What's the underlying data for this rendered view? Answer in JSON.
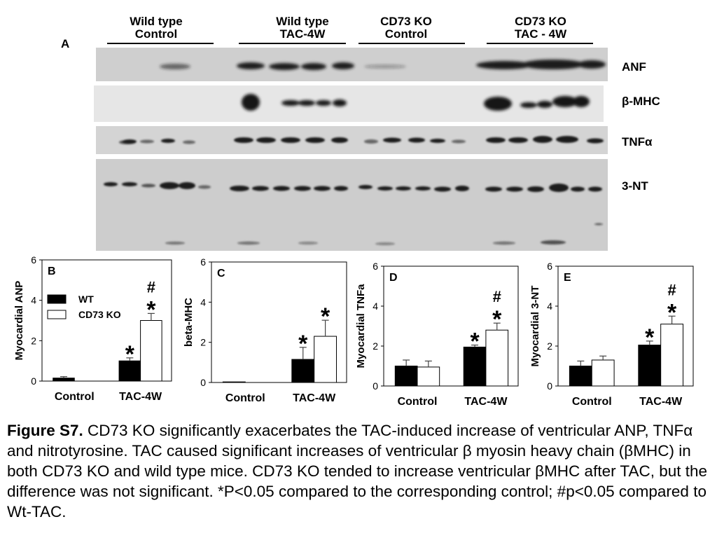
{
  "figure": {
    "panel_a_letter": "A",
    "groups": [
      {
        "line1": "Wild type",
        "line2": "Control"
      },
      {
        "line1": "Wild type",
        "line2": "TAC-4W"
      },
      {
        "line1": "CD73 KO",
        "line2": "Control"
      },
      {
        "line1": "CD73 KO",
        "line2": "TAC - 4W"
      }
    ],
    "blot_labels": [
      "ANF",
      "β-MHC",
      "TNFα",
      "3-NT"
    ],
    "caption": {
      "label": "Figure S7.",
      "text": " CD73 KO significantly exacerbates the TAC-induced increase of ventricular ANP, TNFα and nitrotyrosine. TAC caused significant increases of ventricular β myosin heavy chain (βMHC) in both CD73 KO and wild type mice. CD73 KO tended to increase ventricular βMHC after TAC, but the difference was not significant. *P<0.05 compared to the corresponding control; #p<0.05 compared to Wt-TAC."
    }
  },
  "chart_data": [
    {
      "type": "bar",
      "panel": "B",
      "ylabel": "Myocardial ANP",
      "ylim": [
        0,
        6
      ],
      "yticks": [
        "0",
        "2",
        "4",
        "6"
      ],
      "categories": [
        "Control",
        "TAC-4W"
      ],
      "series": [
        {
          "name": "WT",
          "color": "#000000",
          "values": [
            0.15,
            1.0
          ],
          "errors": [
            0.07,
            0.15
          ]
        },
        {
          "name": "CD73 KO",
          "color": "#ffffff",
          "values": [
            0.0,
            3.0
          ],
          "errors": [
            0.0,
            0.35
          ]
        }
      ],
      "annotations": [
        [
          "",
          ""
        ],
        [
          "*",
          "#\n*"
        ]
      ],
      "legend": "top-left"
    },
    {
      "type": "bar",
      "panel": "C",
      "ylabel": "beta-MHC",
      "ylim": [
        0,
        6
      ],
      "yticks": [
        "0",
        "2",
        "4",
        "6"
      ],
      "categories": [
        "Control",
        "TAC-4W"
      ],
      "series": [
        {
          "name": "WT",
          "color": "#000000",
          "values": [
            0.03,
            1.15
          ],
          "errors": [
            0.0,
            0.6
          ]
        },
        {
          "name": "CD73 KO",
          "color": "#ffffff",
          "values": [
            0.0,
            2.3
          ],
          "errors": [
            0.0,
            0.8
          ]
        }
      ],
      "annotations": [
        [
          "",
          ""
        ],
        [
          "*",
          "*"
        ]
      ]
    },
    {
      "type": "bar",
      "panel": "D",
      "ylabel": "Myocardial TNFa",
      "ylim": [
        0,
        6
      ],
      "yticks": [
        "0",
        "2",
        "4",
        "6"
      ],
      "categories": [
        "Control",
        "TAC-4W"
      ],
      "series": [
        {
          "name": "WT",
          "color": "#000000",
          "values": [
            1.0,
            1.95
          ],
          "errors": [
            0.3,
            0.1
          ]
        },
        {
          "name": "CD73 KO",
          "color": "#ffffff",
          "values": [
            0.95,
            2.8
          ],
          "errors": [
            0.3,
            0.35
          ]
        }
      ],
      "annotations": [
        [
          "",
          ""
        ],
        [
          "*",
          "#\n*"
        ]
      ]
    },
    {
      "type": "bar",
      "panel": "E",
      "ylabel": "Myocardial 3-NT",
      "ylim": [
        0,
        6
      ],
      "yticks": [
        "0",
        "2",
        "4",
        "6"
      ],
      "categories": [
        "Control",
        "TAC-4W"
      ],
      "series": [
        {
          "name": "WT",
          "color": "#000000",
          "values": [
            1.0,
            2.05
          ],
          "errors": [
            0.25,
            0.2
          ]
        },
        {
          "name": "CD73 KO",
          "color": "#ffffff",
          "values": [
            1.3,
            3.1
          ],
          "errors": [
            0.2,
            0.4
          ]
        }
      ],
      "annotations": [
        [
          "",
          ""
        ],
        [
          "*",
          "#\n*"
        ]
      ]
    }
  ]
}
